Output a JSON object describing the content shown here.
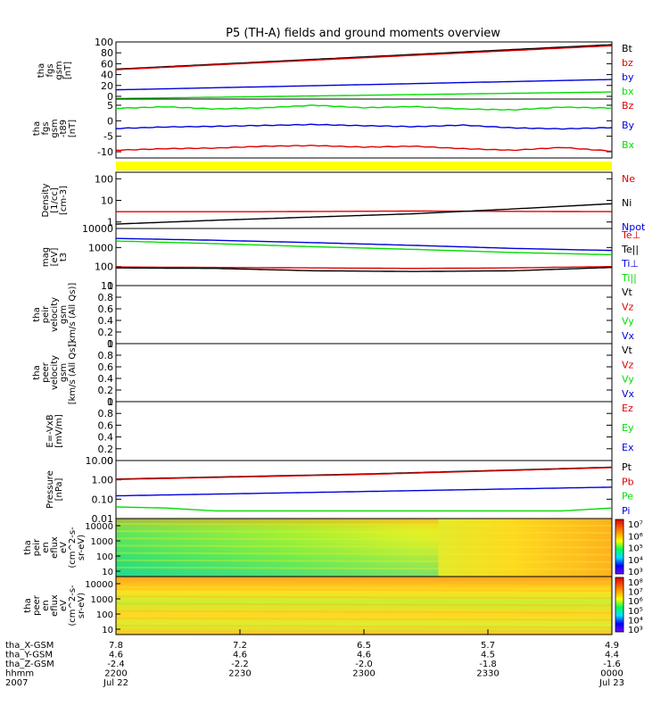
{
  "title": "P5 (TH-A) fields and ground moments overview",
  "colors": {
    "black": "#000000",
    "red": "#e00000",
    "green": "#00dd00",
    "blue": "#0000dd",
    "yellow": "#ffff00"
  },
  "chart_data": [
    {
      "type": "line",
      "panel": "fgs_gsm",
      "ylabel": [
        "tha",
        "fgs",
        "gsm",
        "[nT]"
      ],
      "ylim": [
        -5,
        100
      ],
      "yticks": [
        0,
        20,
        40,
        60,
        80,
        100
      ],
      "series": [
        {
          "name": "Bt",
          "color": "black",
          "x": [
            0,
            1
          ],
          "y": [
            50,
            95
          ]
        },
        {
          "name": "bz",
          "color": "red",
          "x": [
            0,
            1
          ],
          "y": [
            49,
            93
          ]
        },
        {
          "name": "by",
          "color": "blue",
          "x": [
            0,
            1
          ],
          "y": [
            12,
            31
          ]
        },
        {
          "name": "bx",
          "color": "green",
          "x": [
            0,
            1
          ],
          "y": [
            -4,
            8
          ]
        }
      ]
    },
    {
      "type": "line",
      "panel": "fgs_gsm_t89",
      "ylabel": [
        "tha",
        "fgs",
        "gsm",
        "-t89",
        "[nT]"
      ],
      "ylim": [
        -12,
        7
      ],
      "yticks": [
        -10,
        -5,
        0,
        5
      ],
      "series": [
        {
          "name": "Bz",
          "color": "red",
          "x": [
            0,
            0.1,
            0.2,
            0.3,
            0.4,
            0.5,
            0.6,
            0.7,
            0.8,
            0.9,
            1
          ],
          "y": [
            -9.5,
            -9,
            -8.8,
            -8.2,
            -8,
            -8.5,
            -8.2,
            -9,
            -9.5,
            -8.6,
            -9.8
          ]
        },
        {
          "name": "By",
          "color": "blue",
          "x": [
            0,
            0.1,
            0.2,
            0.3,
            0.4,
            0.5,
            0.6,
            0.7,
            0.8,
            0.9,
            1
          ],
          "y": [
            -2.5,
            -2,
            -1.8,
            -1.5,
            -1.2,
            -1.6,
            -1.9,
            -1.4,
            -2.3,
            -2.6,
            -2.2
          ]
        },
        {
          "name": "Bx",
          "color": "green",
          "x": [
            0,
            0.1,
            0.2,
            0.3,
            0.4,
            0.5,
            0.6,
            0.7,
            0.8,
            0.9,
            1
          ],
          "y": [
            4,
            4.5,
            3.8,
            4.2,
            5,
            4.2,
            4.6,
            3.8,
            3.5,
            4.4,
            4.1
          ]
        }
      ]
    },
    {
      "type": "line",
      "panel": "density",
      "ylabel": [
        "Density",
        "[1/cc]",
        "[cm-3]"
      ],
      "scale": "log",
      "ylim": [
        0.5,
        200
      ],
      "yticks": [
        1,
        10,
        100
      ],
      "series": [
        {
          "name": "Ne",
          "color": "red",
          "x": [
            0,
            0.3,
            0.6,
            0.8,
            1
          ],
          "y": [
            3,
            3,
            3.2,
            3.1,
            3
          ]
        },
        {
          "name": "Ni",
          "color": "black",
          "x": [
            0,
            0.2,
            0.4,
            0.6,
            0.8,
            1
          ],
          "y": [
            0.8,
            1.2,
            1.7,
            2.4,
            4,
            7
          ]
        },
        {
          "name": "Npot",
          "color": "blue",
          "x": [],
          "y": []
        }
      ]
    },
    {
      "type": "line",
      "panel": "temperature",
      "ylabel": [
        "mag",
        "[eV]",
        "t3"
      ],
      "scale": "log",
      "ylim": [
        10,
        10000
      ],
      "yticks": [
        10,
        100,
        1000,
        10000
      ],
      "series": [
        {
          "name": "Te⊥",
          "color": "red",
          "x": [
            0,
            0.2,
            0.4,
            0.6,
            0.8,
            1
          ],
          "y": [
            95,
            90,
            85,
            80,
            85,
            100
          ]
        },
        {
          "name": "Te||",
          "color": "black",
          "x": [
            0,
            0.2,
            0.4,
            0.6,
            0.8,
            1
          ],
          "y": [
            85,
            80,
            60,
            55,
            60,
            90
          ]
        },
        {
          "name": "Ti⊥",
          "color": "blue",
          "x": [
            0,
            0.2,
            0.4,
            0.6,
            0.8,
            1
          ],
          "y": [
            3000,
            2400,
            1800,
            1300,
            900,
            700
          ]
        },
        {
          "name": "Ti||",
          "color": "green",
          "x": [
            0,
            0.2,
            0.4,
            0.6,
            0.8,
            1
          ],
          "y": [
            2200,
            1600,
            1100,
            800,
            550,
            420
          ]
        }
      ]
    },
    {
      "type": "line",
      "panel": "peir_velocity",
      "ylabel": [
        "tha",
        "peir",
        "velocity",
        "gsm",
        "[km/s (All Qs)]"
      ],
      "ylim": [
        0,
        1
      ],
      "yticks": [
        0.0,
        0.2,
        0.4,
        0.6,
        0.8,
        1.0
      ],
      "legend": [
        "Vt",
        "Vz",
        "Vy",
        "Vx"
      ]
    },
    {
      "type": "line",
      "panel": "peer_velocity",
      "ylabel": [
        "tha",
        "peer",
        "velocity",
        "gsm",
        "[km/s (All Qs)]"
      ],
      "ylim": [
        0,
        1
      ],
      "yticks": [
        0.0,
        0.2,
        0.4,
        0.6,
        0.8,
        1.0
      ],
      "legend": [
        "Vt",
        "Vz",
        "Vy",
        "Vx"
      ]
    },
    {
      "type": "line",
      "panel": "e_field",
      "ylabel": [
        "E=-VxB",
        "[mV/m]"
      ],
      "ylim": [
        0,
        1
      ],
      "yticks": [
        0.0,
        0.2,
        0.4,
        0.6,
        0.8,
        1.0
      ],
      "legend": [
        "Ez",
        "Ey",
        "Ex"
      ]
    },
    {
      "type": "line",
      "panel": "pressure",
      "ylabel": [
        "Pressure",
        "[nPa]"
      ],
      "scale": "log",
      "ylim": [
        0.01,
        10
      ],
      "yticks": [
        0.01,
        0.1,
        1,
        10
      ],
      "ytick_labels": [
        "0.01",
        "0.10",
        "1.00",
        "10.00"
      ],
      "series": [
        {
          "name": "Pt",
          "color": "black",
          "x": [
            0,
            0.5,
            1
          ],
          "y": [
            1.1,
            2,
            4.5
          ]
        },
        {
          "name": "Pb",
          "color": "red",
          "x": [
            0,
            0.5,
            1
          ],
          "y": [
            1.05,
            1.9,
            4.3
          ]
        },
        {
          "name": "Pe",
          "color": "green",
          "x": [
            0,
            0.1,
            0.2,
            0.9,
            1
          ],
          "y": [
            0.04,
            0.035,
            0.025,
            0.025,
            0.035
          ]
        },
        {
          "name": "Pi",
          "color": "blue",
          "x": [
            0,
            0.5,
            1
          ],
          "y": [
            0.15,
            0.25,
            0.42
          ]
        }
      ]
    },
    {
      "type": "heatmap",
      "panel": "peir_eflux",
      "ylabel": [
        "tha",
        "peir",
        "en",
        "eflux",
        "eV",
        "(cm^2-s-",
        "sr-eV)"
      ],
      "yticks": [
        "10",
        "100",
        "1000",
        "10000"
      ],
      "colorbar_ticks": [
        "10³",
        "10⁴",
        "10⁵",
        "10⁶",
        "10⁷"
      ]
    },
    {
      "type": "heatmap",
      "panel": "peer_eflux",
      "ylabel": [
        "tha",
        "peer",
        "en",
        "eflux",
        "eV",
        "(cm^2-s-",
        "sr-eV)"
      ],
      "yticks": [
        "10",
        "100",
        "1000",
        "10000"
      ],
      "colorbar_ticks": [
        "10³",
        "10⁴",
        "10⁵",
        "10⁶",
        "10⁷",
        "10⁸"
      ]
    }
  ],
  "xaxis": {
    "row_labels": [
      "tha_X-GSM",
      "tha_Y-GSM",
      "tha_Z-GSM",
      "hhmm",
      "2007"
    ],
    "columns": [
      {
        "values": [
          "7.8",
          "4.6",
          "-2.4",
          "2200",
          "Jul 22"
        ]
      },
      {
        "values": [
          "7.2",
          "4.6",
          "-2.2",
          "2230",
          ""
        ]
      },
      {
        "values": [
          "6.5",
          "4.6",
          "-2.0",
          "2300",
          ""
        ]
      },
      {
        "values": [
          "5.7",
          "4.5",
          "-1.8",
          "2330",
          ""
        ]
      },
      {
        "values": [
          "4.9",
          "4.4",
          "-1.6",
          "0000",
          "Jul 23"
        ]
      }
    ]
  }
}
